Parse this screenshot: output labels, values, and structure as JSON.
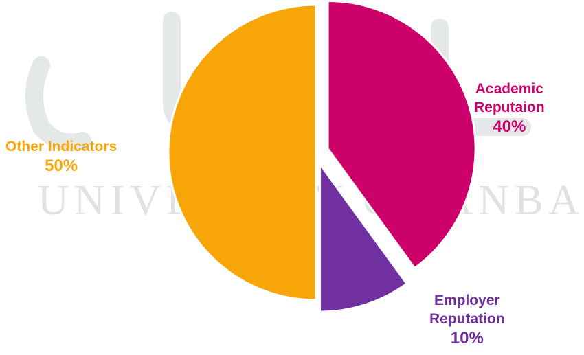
{
  "chart_data": {
    "type": "pie",
    "slices": [
      {
        "label_lines": [
          "Academic",
          "Reputaion"
        ],
        "percent_text": "40%",
        "value": 40,
        "color": "#cc0169",
        "exploded": true
      },
      {
        "label_lines": [
          "Employer",
          "Reputation"
        ],
        "percent_text": "10%",
        "value": 10,
        "color": "#7030a0",
        "exploded": true
      },
      {
        "label_lines": [
          "Other Indicators"
        ],
        "percent_text": "50%",
        "value": 50,
        "color": "#f8a50a",
        "exploded": false
      }
    ],
    "title": "",
    "legend": "none"
  },
  "watermark": {
    "text": "UNIVERSITY OF ANBAR"
  }
}
